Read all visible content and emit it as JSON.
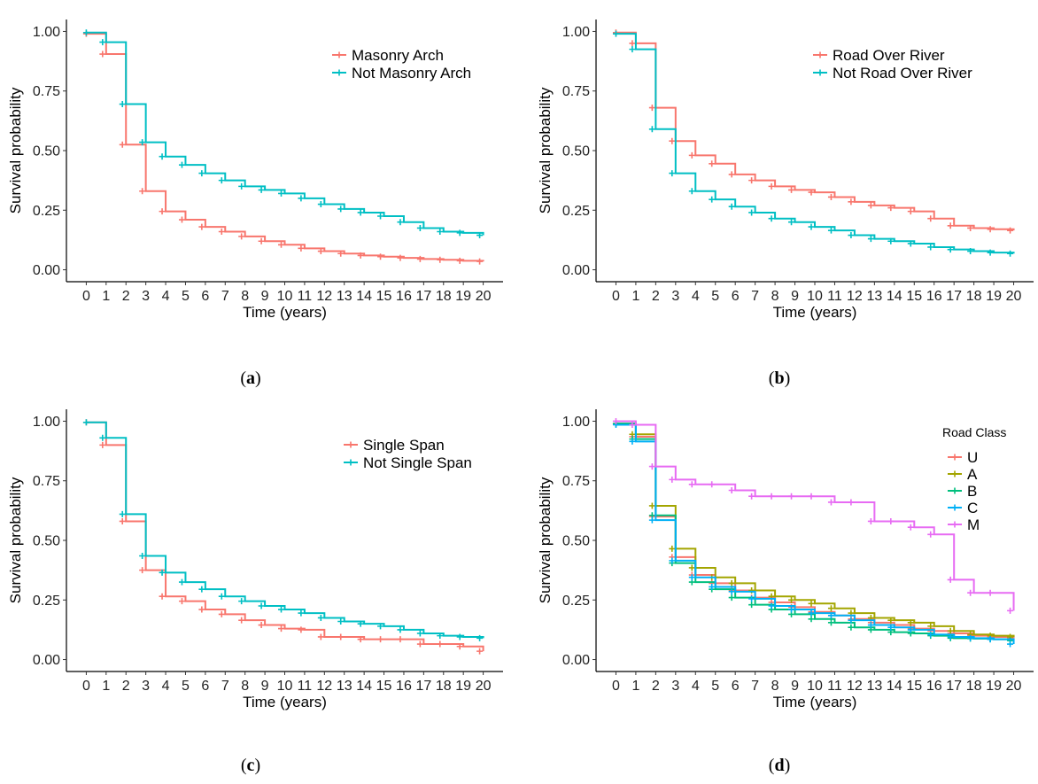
{
  "figure": {
    "background": "#ffffff"
  },
  "chart_data": [
    {
      "type": "line",
      "step": "post",
      "caption": "(a)",
      "caption_letter": "a",
      "xlabel": "Time (years)",
      "ylabel": "Survival probability",
      "xlim": [
        0,
        20
      ],
      "ylim": [
        0,
        1
      ],
      "xticks": [
        0,
        1,
        2,
        3,
        4,
        5,
        6,
        7,
        8,
        9,
        10,
        11,
        12,
        13,
        14,
        15,
        16,
        17,
        18,
        19,
        20
      ],
      "yticks": [
        "0.00",
        "0.25",
        "0.50",
        "0.75",
        "1.00"
      ],
      "legend_title": "",
      "legend_position": "top-right",
      "series": [
        {
          "name": "Masonry Arch",
          "color": "#f8766d",
          "x": [
            0,
            1,
            2,
            3,
            4,
            5,
            6,
            7,
            8,
            9,
            10,
            11,
            12,
            13,
            14,
            15,
            16,
            17,
            18,
            19,
            20
          ],
          "y": [
            0.99,
            0.905,
            0.525,
            0.33,
            0.245,
            0.21,
            0.18,
            0.16,
            0.14,
            0.12,
            0.105,
            0.09,
            0.078,
            0.068,
            0.06,
            0.055,
            0.05,
            0.045,
            0.042,
            0.038,
            0.035
          ]
        },
        {
          "name": "Not Masonry Arch",
          "color": "#00bfc4",
          "x": [
            0,
            1,
            2,
            3,
            4,
            5,
            6,
            7,
            8,
            9,
            10,
            11,
            12,
            13,
            14,
            15,
            16,
            17,
            18,
            19,
            20
          ],
          "y": [
            0.995,
            0.955,
            0.695,
            0.535,
            0.475,
            0.44,
            0.405,
            0.375,
            0.35,
            0.335,
            0.32,
            0.3,
            0.275,
            0.255,
            0.24,
            0.225,
            0.2,
            0.175,
            0.16,
            0.155,
            0.145
          ]
        }
      ]
    },
    {
      "type": "line",
      "step": "post",
      "caption": "(b)",
      "caption_letter": "b",
      "xlabel": "Time (years)",
      "ylabel": "Survival probability",
      "xlim": [
        0,
        20
      ],
      "ylim": [
        0,
        1
      ],
      "xticks": [
        0,
        1,
        2,
        3,
        4,
        5,
        6,
        7,
        8,
        9,
        10,
        11,
        12,
        13,
        14,
        15,
        16,
        17,
        18,
        19,
        20
      ],
      "yticks": [
        "0.00",
        "0.25",
        "0.50",
        "0.75",
        "1.00"
      ],
      "legend_title": "",
      "legend_position": "top-right",
      "series": [
        {
          "name": "Road Over River",
          "color": "#f8766d",
          "x": [
            0,
            1,
            2,
            3,
            4,
            5,
            6,
            7,
            8,
            9,
            10,
            11,
            12,
            13,
            14,
            15,
            16,
            17,
            18,
            19,
            20
          ],
          "y": [
            0.995,
            0.95,
            0.68,
            0.54,
            0.48,
            0.445,
            0.4,
            0.375,
            0.35,
            0.335,
            0.325,
            0.305,
            0.285,
            0.27,
            0.26,
            0.245,
            0.215,
            0.185,
            0.175,
            0.17,
            0.165
          ]
        },
        {
          "name": "Not Road Over River",
          "color": "#00bfc4",
          "x": [
            0,
            1,
            2,
            3,
            4,
            5,
            6,
            7,
            8,
            9,
            10,
            11,
            12,
            13,
            14,
            15,
            16,
            17,
            18,
            19,
            20
          ],
          "y": [
            0.99,
            0.925,
            0.59,
            0.405,
            0.33,
            0.295,
            0.265,
            0.24,
            0.215,
            0.2,
            0.18,
            0.165,
            0.145,
            0.13,
            0.12,
            0.11,
            0.095,
            0.085,
            0.078,
            0.072,
            0.068
          ]
        }
      ]
    },
    {
      "type": "line",
      "step": "post",
      "caption": "(c)",
      "caption_letter": "c",
      "xlabel": "Time (years)",
      "ylabel": "Survival probability",
      "xlim": [
        0,
        20
      ],
      "ylim": [
        0,
        1
      ],
      "xticks": [
        0,
        1,
        2,
        3,
        4,
        5,
        6,
        7,
        8,
        9,
        10,
        11,
        12,
        13,
        14,
        15,
        16,
        17,
        18,
        19,
        20
      ],
      "yticks": [
        "0.00",
        "0.25",
        "0.50",
        "0.75",
        "1.00"
      ],
      "legend_title": "",
      "legend_position": "top-right",
      "series": [
        {
          "name": "Single Span",
          "color": "#f8766d",
          "x": [
            0,
            1,
            2,
            3,
            4,
            5,
            6,
            7,
            8,
            9,
            10,
            11,
            12,
            13,
            14,
            15,
            16,
            17,
            18,
            19,
            20
          ],
          "y": [
            0.995,
            0.9,
            0.58,
            0.375,
            0.265,
            0.245,
            0.21,
            0.19,
            0.165,
            0.145,
            0.13,
            0.125,
            0.095,
            0.095,
            0.085,
            0.085,
            0.085,
            0.065,
            0.065,
            0.055,
            0.035
          ]
        },
        {
          "name": "Not Single Span",
          "color": "#00bfc4",
          "x": [
            0,
            1,
            2,
            3,
            4,
            5,
            6,
            7,
            8,
            9,
            10,
            11,
            12,
            13,
            14,
            15,
            16,
            17,
            18,
            19,
            20
          ],
          "y": [
            0.995,
            0.93,
            0.61,
            0.435,
            0.365,
            0.325,
            0.295,
            0.265,
            0.245,
            0.225,
            0.21,
            0.195,
            0.175,
            0.16,
            0.15,
            0.14,
            0.125,
            0.11,
            0.1,
            0.095,
            0.09
          ]
        }
      ]
    },
    {
      "type": "line",
      "step": "post",
      "caption": "(d)",
      "caption_letter": "d",
      "xlabel": "Time (years)",
      "ylabel": "Survival probability",
      "xlim": [
        0,
        20
      ],
      "ylim": [
        0,
        1
      ],
      "xticks": [
        0,
        1,
        2,
        3,
        4,
        5,
        6,
        7,
        8,
        9,
        10,
        11,
        12,
        13,
        14,
        15,
        16,
        17,
        18,
        19,
        20
      ],
      "yticks": [
        "0.00",
        "0.25",
        "0.50",
        "0.75",
        "1.00"
      ],
      "legend_title": "Road Class",
      "legend_position": "top-right",
      "series": [
        {
          "name": "U",
          "color": "#f8766d",
          "x": [
            0,
            1,
            2,
            3,
            4,
            5,
            6,
            7,
            8,
            9,
            10,
            11,
            12,
            13,
            14,
            15,
            16,
            17,
            18,
            19,
            20
          ],
          "y": [
            0.99,
            0.935,
            0.6,
            0.43,
            0.355,
            0.32,
            0.29,
            0.26,
            0.24,
            0.22,
            0.2,
            0.185,
            0.17,
            0.155,
            0.145,
            0.13,
            0.12,
            0.11,
            0.1,
            0.095,
            0.09
          ]
        },
        {
          "name": "A",
          "color": "#a3a500",
          "x": [
            0,
            1,
            2,
            3,
            4,
            5,
            6,
            7,
            8,
            9,
            10,
            11,
            12,
            13,
            14,
            15,
            16,
            17,
            18,
            19,
            20
          ],
          "y": [
            0.99,
            0.945,
            0.645,
            0.465,
            0.385,
            0.345,
            0.32,
            0.29,
            0.265,
            0.25,
            0.235,
            0.215,
            0.195,
            0.175,
            0.165,
            0.155,
            0.14,
            0.12,
            0.105,
            0.1,
            0.095
          ]
        },
        {
          "name": "B",
          "color": "#00bf7d",
          "x": [
            0,
            1,
            2,
            3,
            4,
            5,
            6,
            7,
            8,
            9,
            10,
            11,
            12,
            13,
            14,
            15,
            16,
            17,
            18,
            19,
            20
          ],
          "y": [
            0.99,
            0.925,
            0.605,
            0.405,
            0.325,
            0.295,
            0.26,
            0.23,
            0.21,
            0.19,
            0.17,
            0.155,
            0.135,
            0.125,
            0.115,
            0.11,
            0.1,
            0.09,
            0.088,
            0.085,
            0.08
          ]
        },
        {
          "name": "C",
          "color": "#00b0f6",
          "x": [
            0,
            1,
            2,
            3,
            4,
            5,
            6,
            7,
            8,
            9,
            10,
            11,
            12,
            13,
            14,
            15,
            16,
            17,
            18,
            19,
            20
          ],
          "y": [
            0.985,
            0.915,
            0.585,
            0.415,
            0.345,
            0.305,
            0.285,
            0.255,
            0.225,
            0.21,
            0.195,
            0.185,
            0.165,
            0.145,
            0.135,
            0.125,
            0.105,
            0.095,
            0.09,
            0.085,
            0.065
          ]
        },
        {
          "name": "M",
          "color": "#e76bf3",
          "x": [
            0,
            1,
            2,
            3,
            4,
            5,
            6,
            7,
            8,
            9,
            10,
            11,
            12,
            13,
            14,
            15,
            16,
            17,
            18,
            19,
            20
          ],
          "y": [
            1.0,
            0.985,
            0.81,
            0.755,
            0.735,
            0.735,
            0.71,
            0.685,
            0.685,
            0.685,
            0.685,
            0.66,
            0.66,
            0.58,
            0.58,
            0.555,
            0.525,
            0.335,
            0.28,
            0.28,
            0.205
          ]
        }
      ]
    }
  ]
}
